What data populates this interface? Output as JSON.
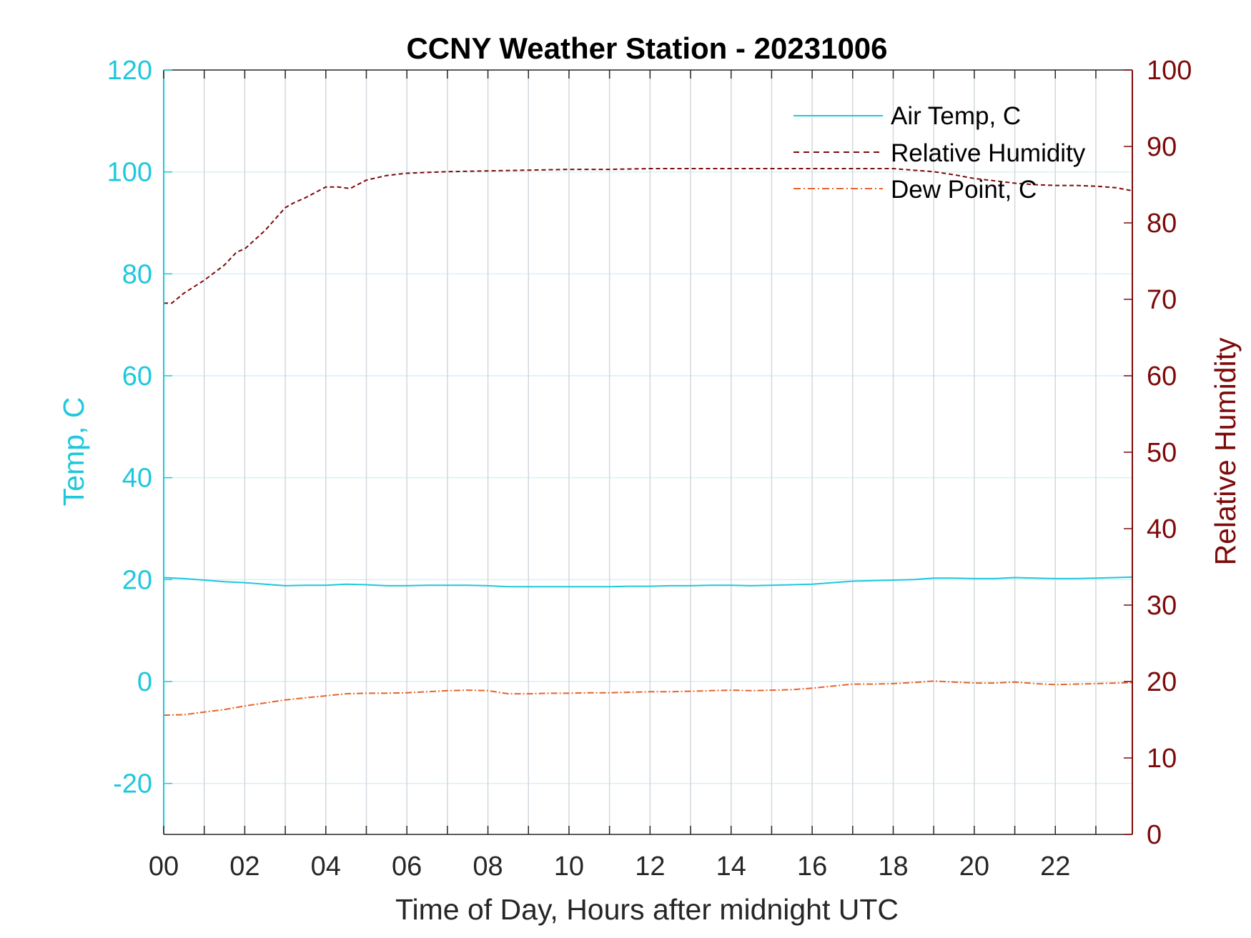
{
  "chart_data": {
    "type": "line",
    "title": "CCNY Weather Station - 20231006",
    "xlabel": "Time of Day, Hours after midnight UTC",
    "ylabel_left": "Temp, C",
    "ylabel_right": "Relative Humidity",
    "xlim": [
      0,
      23.9
    ],
    "ylim_left": [
      -30,
      120
    ],
    "ylim_right": [
      0,
      100
    ],
    "xticks": [
      0,
      2,
      4,
      6,
      8,
      10,
      12,
      14,
      16,
      18,
      20,
      22
    ],
    "xtick_labels": [
      "00",
      "02",
      "04",
      "06",
      "08",
      "10",
      "12",
      "14",
      "16",
      "18",
      "20",
      "22"
    ],
    "yticks_left": [
      -20,
      0,
      20,
      40,
      60,
      80,
      100,
      120
    ],
    "yticks_right": [
      0,
      10,
      20,
      30,
      40,
      50,
      60,
      70,
      80,
      90,
      100
    ],
    "grid": true,
    "legend_position": "top-right",
    "colors": {
      "left_axis": "#1ec8dc",
      "right_axis": "#7d0a0a",
      "air_temp": "#1ec8dc",
      "rh": "#7d0a0a",
      "dew_point": "#e8622a",
      "vgrid": "#d2d8de",
      "hgrid": "#d6f1f6"
    },
    "series": [
      {
        "name": "Air Temp, C",
        "axis": "left",
        "style": "solid",
        "x": [
          0,
          0.5,
          1,
          1.5,
          2,
          2.5,
          3,
          3.5,
          4,
          4.5,
          5,
          5.5,
          6,
          6.5,
          7,
          7.5,
          8,
          8.5,
          9,
          9.5,
          10,
          10.5,
          11,
          11.5,
          12,
          12.5,
          13,
          13.5,
          14,
          14.5,
          15,
          15.5,
          16,
          16.5,
          17,
          17.5,
          18,
          18.5,
          19,
          19.5,
          20,
          20.5,
          21,
          21.5,
          22,
          22.5,
          23,
          23.5,
          23.9
        ],
        "y": [
          20.4,
          20.2,
          19.9,
          19.6,
          19.4,
          19.1,
          18.8,
          18.9,
          18.9,
          19.1,
          19.0,
          18.8,
          18.8,
          18.9,
          18.9,
          18.9,
          18.8,
          18.6,
          18.6,
          18.6,
          18.6,
          18.6,
          18.6,
          18.7,
          18.7,
          18.8,
          18.8,
          18.9,
          18.9,
          18.8,
          18.9,
          19.0,
          19.1,
          19.4,
          19.7,
          19.8,
          19.9,
          20.0,
          20.3,
          20.3,
          20.2,
          20.2,
          20.4,
          20.3,
          20.2,
          20.2,
          20.3,
          20.4,
          20.5
        ]
      },
      {
        "name": "Relative Humidity",
        "axis": "right",
        "style": "dashed",
        "x": [
          0,
          0.2,
          0.5,
          1,
          1.5,
          1.8,
          2,
          2.5,
          3,
          3.2,
          3.5,
          4,
          4.3,
          4.6,
          5,
          5.5,
          6,
          6.5,
          7,
          8,
          9,
          10,
          11,
          12,
          13,
          14,
          15,
          16,
          17,
          17.5,
          18,
          18.5,
          19,
          19.5,
          20,
          20.5,
          21,
          21.5,
          22,
          22.5,
          23,
          23.5,
          23.9
        ],
        "y": [
          69.5,
          69.5,
          70.8,
          72.5,
          74.5,
          76.2,
          76.6,
          79.0,
          82.0,
          82.6,
          83.3,
          84.7,
          84.7,
          84.5,
          85.6,
          86.2,
          86.5,
          86.6,
          86.7,
          86.8,
          86.9,
          87.0,
          87.0,
          87.1,
          87.1,
          87.1,
          87.1,
          87.1,
          87.1,
          87.1,
          87.1,
          86.9,
          86.7,
          86.3,
          85.8,
          85.5,
          85.2,
          85.0,
          84.9,
          84.9,
          84.8,
          84.6,
          84.2
        ]
      },
      {
        "name": "Dew Point, C",
        "axis": "left",
        "style": "dashdot",
        "x": [
          0,
          0.5,
          1,
          1.5,
          2,
          2.5,
          3,
          3.5,
          4,
          4.5,
          5,
          5.5,
          6,
          6.5,
          7,
          7.5,
          8,
          8.5,
          9,
          9.5,
          10,
          10.5,
          11,
          11.5,
          12,
          12.5,
          13,
          13.5,
          14,
          14.5,
          15,
          15.5,
          16,
          16.5,
          17,
          17.5,
          18,
          18.5,
          19,
          19.5,
          20,
          20.5,
          21,
          21.5,
          22,
          22.5,
          23,
          23.5,
          23.9
        ],
        "y": [
          -6.6,
          -6.5,
          -6.0,
          -5.5,
          -4.8,
          -4.2,
          -3.6,
          -3.2,
          -2.8,
          -2.4,
          -2.3,
          -2.3,
          -2.2,
          -2.0,
          -1.8,
          -1.7,
          -1.8,
          -2.4,
          -2.4,
          -2.3,
          -2.3,
          -2.2,
          -2.2,
          -2.1,
          -2.0,
          -2.0,
          -1.9,
          -1.8,
          -1.7,
          -1.8,
          -1.7,
          -1.6,
          -1.3,
          -0.9,
          -0.5,
          -0.5,
          -0.4,
          -0.2,
          0.1,
          -0.1,
          -0.3,
          -0.3,
          -0.1,
          -0.4,
          -0.6,
          -0.5,
          -0.4,
          -0.3,
          -0.2
        ]
      }
    ]
  }
}
